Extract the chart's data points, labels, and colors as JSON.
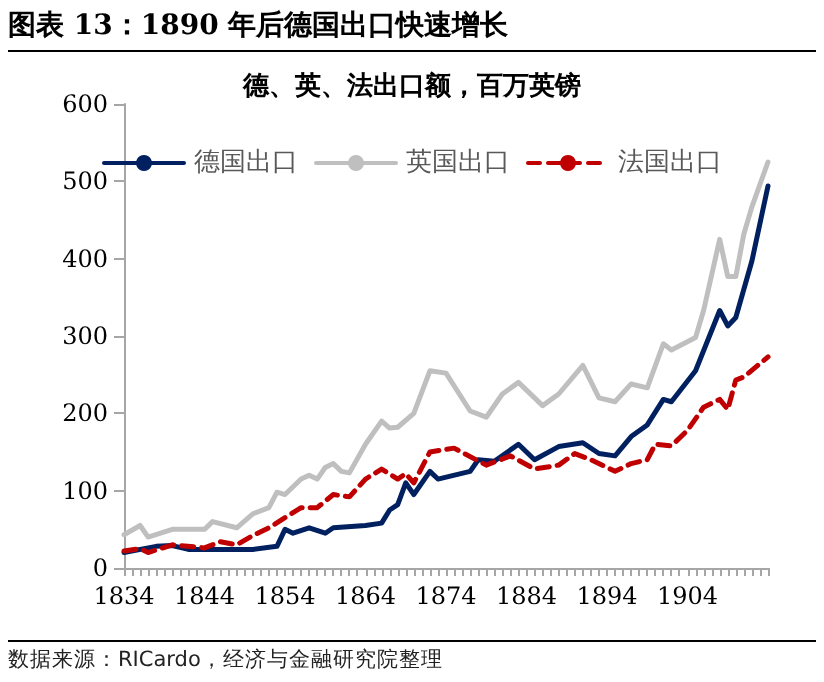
{
  "chart_data": {
    "type": "line",
    "title": "图表 13：1890 年后德国出口快速增长",
    "subtitle": "德、英、法出口额，百万英镑",
    "annotations": [
      "数据来源：RICardo，经济与金融研究院整理"
    ],
    "xlim": [
      1834,
      1914
    ],
    "xticks": [
      1834,
      1844,
      1854,
      1864,
      1874,
      1884,
      1894,
      1904
    ],
    "ylim": [
      0,
      600
    ],
    "yticks": [
      0,
      100,
      200,
      300,
      400,
      500,
      600
    ],
    "grid": false,
    "legend": "top",
    "marker": "none",
    "series": [
      {
        "name": "德国出口",
        "color": "#002060",
        "line_style": "solid",
        "x": [
          1834,
          1838,
          1840,
          1842,
          1846,
          1850,
          1853,
          1854,
          1855,
          1857,
          1859,
          1860,
          1864,
          1866,
          1867,
          1868,
          1869,
          1870,
          1872,
          1873,
          1877,
          1878,
          1880,
          1883,
          1885,
          1888,
          1891,
          1893,
          1895,
          1897,
          1899,
          1901,
          1902,
          1905,
          1908,
          1909,
          1910,
          1912,
          1914
        ],
        "values": [
          20,
          28,
          29,
          24,
          24,
          24,
          28,
          50,
          45,
          52,
          45,
          52,
          55,
          58,
          75,
          82,
          110,
          95,
          125,
          115,
          125,
          140,
          138,
          160,
          140,
          157,
          162,
          148,
          145,
          170,
          185,
          218,
          215,
          255,
          333,
          313,
          324,
          397,
          494
        ]
      },
      {
        "name": "英国出口",
        "color": "#bfbfbf",
        "line_style": "solid",
        "x": [
          1834,
          1836,
          1837,
          1840,
          1844,
          1845,
          1848,
          1850,
          1852,
          1853,
          1854,
          1856,
          1857,
          1858,
          1859,
          1860,
          1861,
          1862,
          1864,
          1866,
          1867,
          1868,
          1870,
          1872,
          1874,
          1877,
          1879,
          1881,
          1883,
          1886,
          1888,
          1891,
          1893,
          1895,
          1897,
          1899,
          1901,
          1902,
          1905,
          1906,
          1908,
          1909,
          1910,
          1911,
          1912,
          1914
        ],
        "values": [
          43,
          55,
          40,
          50,
          50,
          60,
          52,
          70,
          78,
          98,
          95,
          115,
          120,
          115,
          130,
          135,
          125,
          123,
          160,
          190,
          181,
          182,
          200,
          255,
          252,
          203,
          195,
          225,
          240,
          210,
          225,
          262,
          220,
          215,
          238,
          233,
          290,
          282,
          298,
          333,
          425,
          377,
          377,
          432,
          467,
          525
        ]
      },
      {
        "name": "法国出口",
        "color": "#c00000",
        "line_style": "dashed",
        "x": [
          1834,
          1836,
          1837,
          1840,
          1844,
          1846,
          1848,
          1850,
          1852,
          1854,
          1856,
          1858,
          1860,
          1862,
          1864,
          1866,
          1868,
          1869,
          1870,
          1872,
          1875,
          1879,
          1882,
          1885,
          1888,
          1890,
          1892,
          1895,
          1897,
          1899,
          1900,
          1902,
          1904,
          1906,
          1908,
          1909,
          1910,
          1911,
          1914
        ],
        "values": [
          22,
          25,
          20,
          30,
          26,
          34,
          30,
          42,
          52,
          65,
          78,
          78,
          95,
          92,
          115,
          128,
          115,
          122,
          110,
          150,
          155,
          133,
          145,
          128,
          133,
          148,
          140,
          125,
          135,
          140,
          160,
          158,
          178,
          208,
          218,
          205,
          243,
          247,
          273
        ]
      }
    ]
  }
}
